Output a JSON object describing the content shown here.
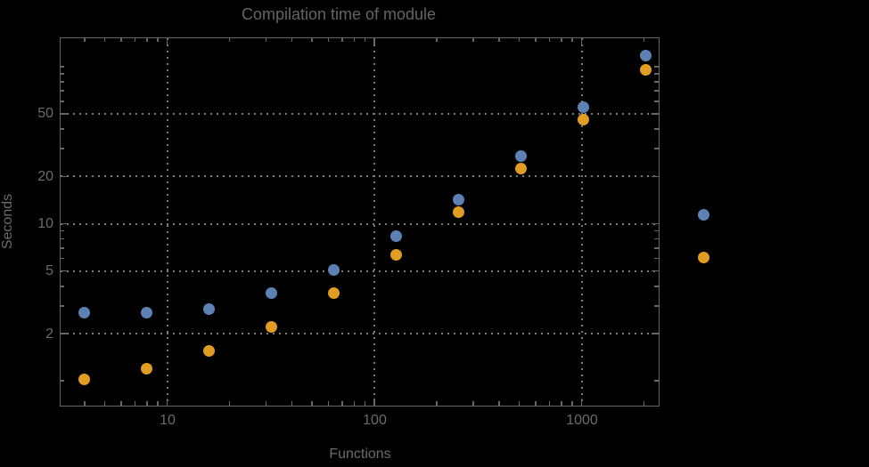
{
  "chart_data": {
    "type": "scatter",
    "title": "Compilation time of module",
    "xlabel": "Functions",
    "ylabel": "Seconds",
    "x_scale": "log",
    "y_scale": "log",
    "x_range": [
      3.05,
      2370
    ],
    "y_range": [
      0.69,
      152
    ],
    "grid": "dotted gray major gridlines",
    "background": "black",
    "x": [
      4,
      8,
      16,
      32,
      64,
      128,
      256,
      512,
      1024,
      2048
    ],
    "series": [
      {
        "name": "series-1-blue",
        "color": "#5E81B5",
        "values": [
          2.7,
          2.7,
          2.85,
          3.6,
          5.1,
          8.3,
          14.3,
          26.8,
          55,
          117
        ]
      },
      {
        "name": "series-2-orange",
        "color": "#E19C24",
        "values": [
          1.02,
          1.2,
          1.55,
          2.2,
          3.6,
          6.3,
          11.9,
          22.3,
          46,
          95
        ]
      }
    ],
    "x_ticks": {
      "values": [
        10,
        100,
        1000
      ],
      "labels": [
        "10",
        "100",
        "1000"
      ]
    },
    "y_ticks": {
      "values": [
        2,
        5,
        10,
        20,
        50
      ],
      "labels": [
        "2",
        "5",
        "10",
        "20",
        "50"
      ]
    },
    "legend": {
      "position": "right-outside",
      "labels_visible": false,
      "marker_colors": [
        "#5E81B5",
        "#E19C24"
      ]
    }
  },
  "colors": {
    "background": "#000000",
    "frame": "#666666",
    "grid": "#7c7c7c",
    "text": "#6b6b6b",
    "title_text": "#646464"
  }
}
